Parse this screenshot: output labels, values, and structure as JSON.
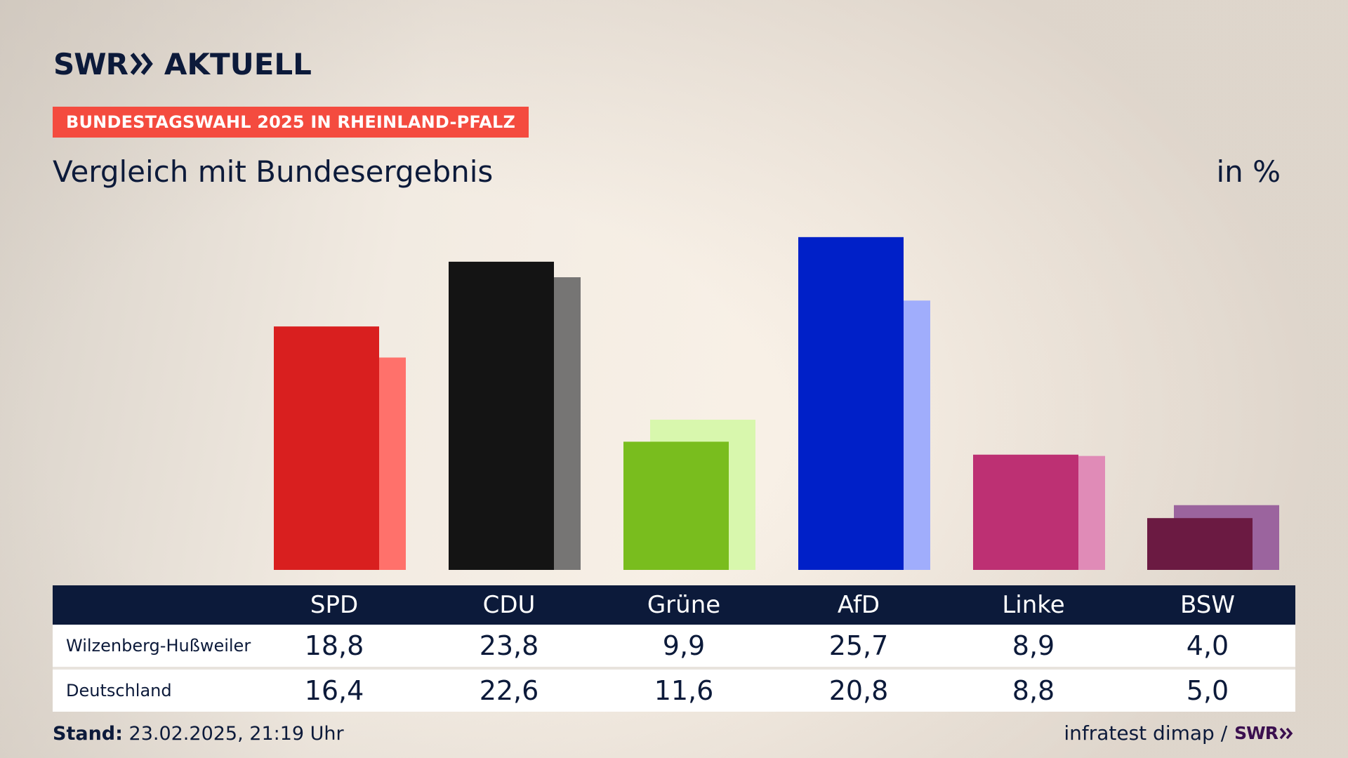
{
  "header": {
    "logo_swr": "SWR",
    "logo_aktuell": "AKTUELL",
    "banner": "BUNDESTAGSWAHL 2025 IN RHEINLAND-PFALZ",
    "subtitle": "Vergleich mit Bundesergebnis",
    "unit": "in %"
  },
  "colors": {
    "banner_bg": "#f44b3f",
    "navy": "#0c1a3a"
  },
  "chart_data": {
    "type": "bar",
    "title": "Vergleich mit Bundesergebnis",
    "ylabel": "in %",
    "categories": [
      "SPD",
      "CDU",
      "Grüne",
      "AfD",
      "Linke",
      "BSW"
    ],
    "series": [
      {
        "name": "Wilzenberg-Hußweiler",
        "values": [
          18.8,
          23.8,
          9.9,
          25.7,
          8.9,
          4.0
        ],
        "colors": [
          "#d91f1f",
          "#141414",
          "#79bd1e",
          "#0020c8",
          "#bd3073",
          "#6b1a42"
        ]
      },
      {
        "name": "Deutschland",
        "values": [
          16.4,
          22.6,
          11.6,
          20.8,
          8.8,
          5.0
        ],
        "colors": [
          "#ff716b",
          "#767574",
          "#d8f7ad",
          "#a0adfc",
          "#e08bb7",
          "#9b649e"
        ]
      }
    ],
    "ylim": [
      0,
      26
    ]
  },
  "table": {
    "headers": [
      "SPD",
      "CDU",
      "Grüne",
      "AfD",
      "Linke",
      "BSW"
    ],
    "rows": [
      {
        "label": "Wilzenberg-Hußweiler",
        "values": [
          "18,8",
          "23,8",
          "9,9",
          "25,7",
          "8,9",
          "4,0"
        ]
      },
      {
        "label": "Deutschland",
        "values": [
          "16,4",
          "22,6",
          "11,6",
          "20,8",
          "8,8",
          "5,0"
        ]
      }
    ]
  },
  "footer": {
    "stand_label": "Stand:",
    "stand_value": "23.02.2025, 21:19 Uhr",
    "source": "infratest dimap /",
    "source_logo": "SWR"
  }
}
